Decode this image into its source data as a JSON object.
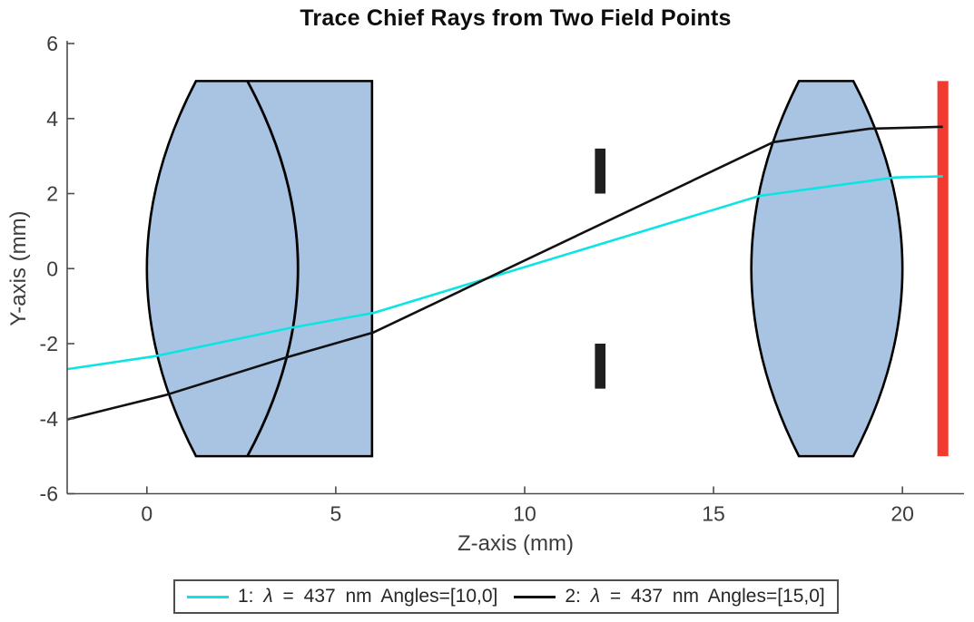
{
  "figure": {
    "background": "#ffffff"
  },
  "chart_data": {
    "type": "line",
    "title": "Trace Chief Rays from Two Field Points",
    "xlabel": "Z-axis (mm)",
    "ylabel": "Y-axis (mm)",
    "xlim": [
      -2.11,
      21.63
    ],
    "ylim": [
      -6,
      6
    ],
    "xticks": [
      0,
      5,
      10,
      15,
      20
    ],
    "yticks": [
      -6,
      -4,
      -2,
      0,
      2,
      4,
      6
    ],
    "grid": false,
    "axis_color": "#4c4c4c",
    "tick_label_color": "#3c3c3c",
    "legend": {
      "position": "below-axes",
      "border_color": "#4f4f4f",
      "entries": [
        {
          "label": "1: λ = 437 nm Angles=[10,0]",
          "color": "#0ce4e4"
        },
        {
          "label": "2: λ = 437 nm Angles=[15,0]",
          "color": "#111111"
        }
      ]
    },
    "optical_elements": {
      "lens_fill": "#a8c4e2",
      "lens_edge": "#000000",
      "lenses": [
        {
          "name": "cemented-doublet-lens",
          "aperture": 5,
          "left_surface": {
            "vertex_z": 0,
            "edge_z": 1.3
          },
          "inner_surface": {
            "vertex_z": 4,
            "edge_z": 2.66
          },
          "right_flat_z": 5.96
        },
        {
          "name": "biconvex-lens",
          "aperture": 5,
          "left_surface": {
            "vertex_z": 16,
            "edge_z": 17.26
          },
          "right_surface": {
            "vertex_z": 20,
            "edge_z": 18.7
          }
        }
      ],
      "aperture_stop": {
        "z": 12,
        "half_opening": 2,
        "half_height": 3.2,
        "bar_width": 0.28,
        "color": "#1f1f1f"
      },
      "image_plane": {
        "z": 21.07,
        "half_height": 5,
        "width": 0.29,
        "color": "#f23b30"
      }
    },
    "rays": [
      {
        "name": "chief-ray-field-1",
        "wavelength_nm": 437,
        "angles": "[10,0]",
        "color": "#0ce4e4",
        "points": [
          [
            -2.11,
            -2.68
          ],
          [
            0.24,
            -2.33
          ],
          [
            3.8,
            -1.58
          ],
          [
            6,
            -1.18
          ],
          [
            16.22,
            1.94
          ],
          [
            19.8,
            2.43
          ],
          [
            21.07,
            2.46
          ]
        ]
      },
      {
        "name": "chief-ray-field-2",
        "wavelength_nm": 437,
        "angles": "[15,0]",
        "color": "#111111",
        "points": [
          [
            -2.11,
            -4.02
          ],
          [
            0.5,
            -3.37
          ],
          [
            3.72,
            -2.36
          ],
          [
            6,
            -1.7
          ],
          [
            16.58,
            3.37
          ],
          [
            19.13,
            3.73
          ],
          [
            21.07,
            3.78
          ]
        ]
      }
    ]
  }
}
